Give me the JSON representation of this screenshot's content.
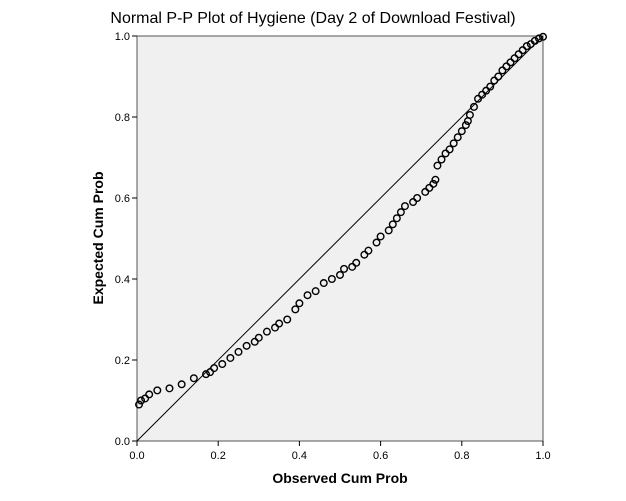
{
  "chart_data": {
    "type": "scatter",
    "title": "Normal P-P Plot of Hygiene (Day 2 of Download Festival)",
    "xlabel": "Observed Cum Prob",
    "ylabel": "Expected Cum Prob",
    "xlim": [
      0,
      1
    ],
    "ylim": [
      0,
      1
    ],
    "xticks": [
      "0.0",
      "0.2",
      "0.4",
      "0.6",
      "0.8",
      "1.0"
    ],
    "yticks": [
      "0.0",
      "0.2",
      "0.4",
      "0.6",
      "0.8",
      "1.0"
    ],
    "grid": false,
    "reference_line": {
      "from": [
        0,
        0
      ],
      "to": [
        1,
        1
      ]
    },
    "colors": {
      "plot_background": "#f0f0f0",
      "marker": "#000000",
      "line": "#000000"
    },
    "points": [
      [
        0.005,
        0.09
      ],
      [
        0.01,
        0.1
      ],
      [
        0.02,
        0.105
      ],
      [
        0.03,
        0.115
      ],
      [
        0.05,
        0.125
      ],
      [
        0.08,
        0.13
      ],
      [
        0.11,
        0.14
      ],
      [
        0.14,
        0.155
      ],
      [
        0.17,
        0.165
      ],
      [
        0.18,
        0.17
      ],
      [
        0.19,
        0.18
      ],
      [
        0.21,
        0.19
      ],
      [
        0.23,
        0.205
      ],
      [
        0.25,
        0.22
      ],
      [
        0.27,
        0.235
      ],
      [
        0.29,
        0.245
      ],
      [
        0.3,
        0.255
      ],
      [
        0.32,
        0.27
      ],
      [
        0.34,
        0.28
      ],
      [
        0.35,
        0.29
      ],
      [
        0.37,
        0.3
      ],
      [
        0.39,
        0.325
      ],
      [
        0.4,
        0.34
      ],
      [
        0.42,
        0.36
      ],
      [
        0.44,
        0.37
      ],
      [
        0.46,
        0.39
      ],
      [
        0.48,
        0.4
      ],
      [
        0.5,
        0.41
      ],
      [
        0.51,
        0.425
      ],
      [
        0.53,
        0.43
      ],
      [
        0.54,
        0.44
      ],
      [
        0.56,
        0.46
      ],
      [
        0.57,
        0.47
      ],
      [
        0.59,
        0.49
      ],
      [
        0.6,
        0.505
      ],
      [
        0.62,
        0.52
      ],
      [
        0.63,
        0.535
      ],
      [
        0.64,
        0.55
      ],
      [
        0.65,
        0.565
      ],
      [
        0.66,
        0.58
      ],
      [
        0.68,
        0.59
      ],
      [
        0.69,
        0.6
      ],
      [
        0.71,
        0.615
      ],
      [
        0.72,
        0.625
      ],
      [
        0.73,
        0.635
      ],
      [
        0.735,
        0.645
      ],
      [
        0.74,
        0.68
      ],
      [
        0.75,
        0.695
      ],
      [
        0.76,
        0.71
      ],
      [
        0.77,
        0.72
      ],
      [
        0.78,
        0.735
      ],
      [
        0.79,
        0.75
      ],
      [
        0.8,
        0.765
      ],
      [
        0.81,
        0.78
      ],
      [
        0.815,
        0.79
      ],
      [
        0.82,
        0.805
      ],
      [
        0.83,
        0.825
      ],
      [
        0.84,
        0.845
      ],
      [
        0.85,
        0.855
      ],
      [
        0.86,
        0.865
      ],
      [
        0.87,
        0.875
      ],
      [
        0.88,
        0.89
      ],
      [
        0.89,
        0.9
      ],
      [
        0.9,
        0.915
      ],
      [
        0.91,
        0.925
      ],
      [
        0.92,
        0.935
      ],
      [
        0.93,
        0.945
      ],
      [
        0.94,
        0.955
      ],
      [
        0.95,
        0.965
      ],
      [
        0.96,
        0.975
      ],
      [
        0.97,
        0.98
      ],
      [
        0.98,
        0.988
      ],
      [
        0.99,
        0.994
      ],
      [
        1.0,
        0.998
      ]
    ]
  }
}
